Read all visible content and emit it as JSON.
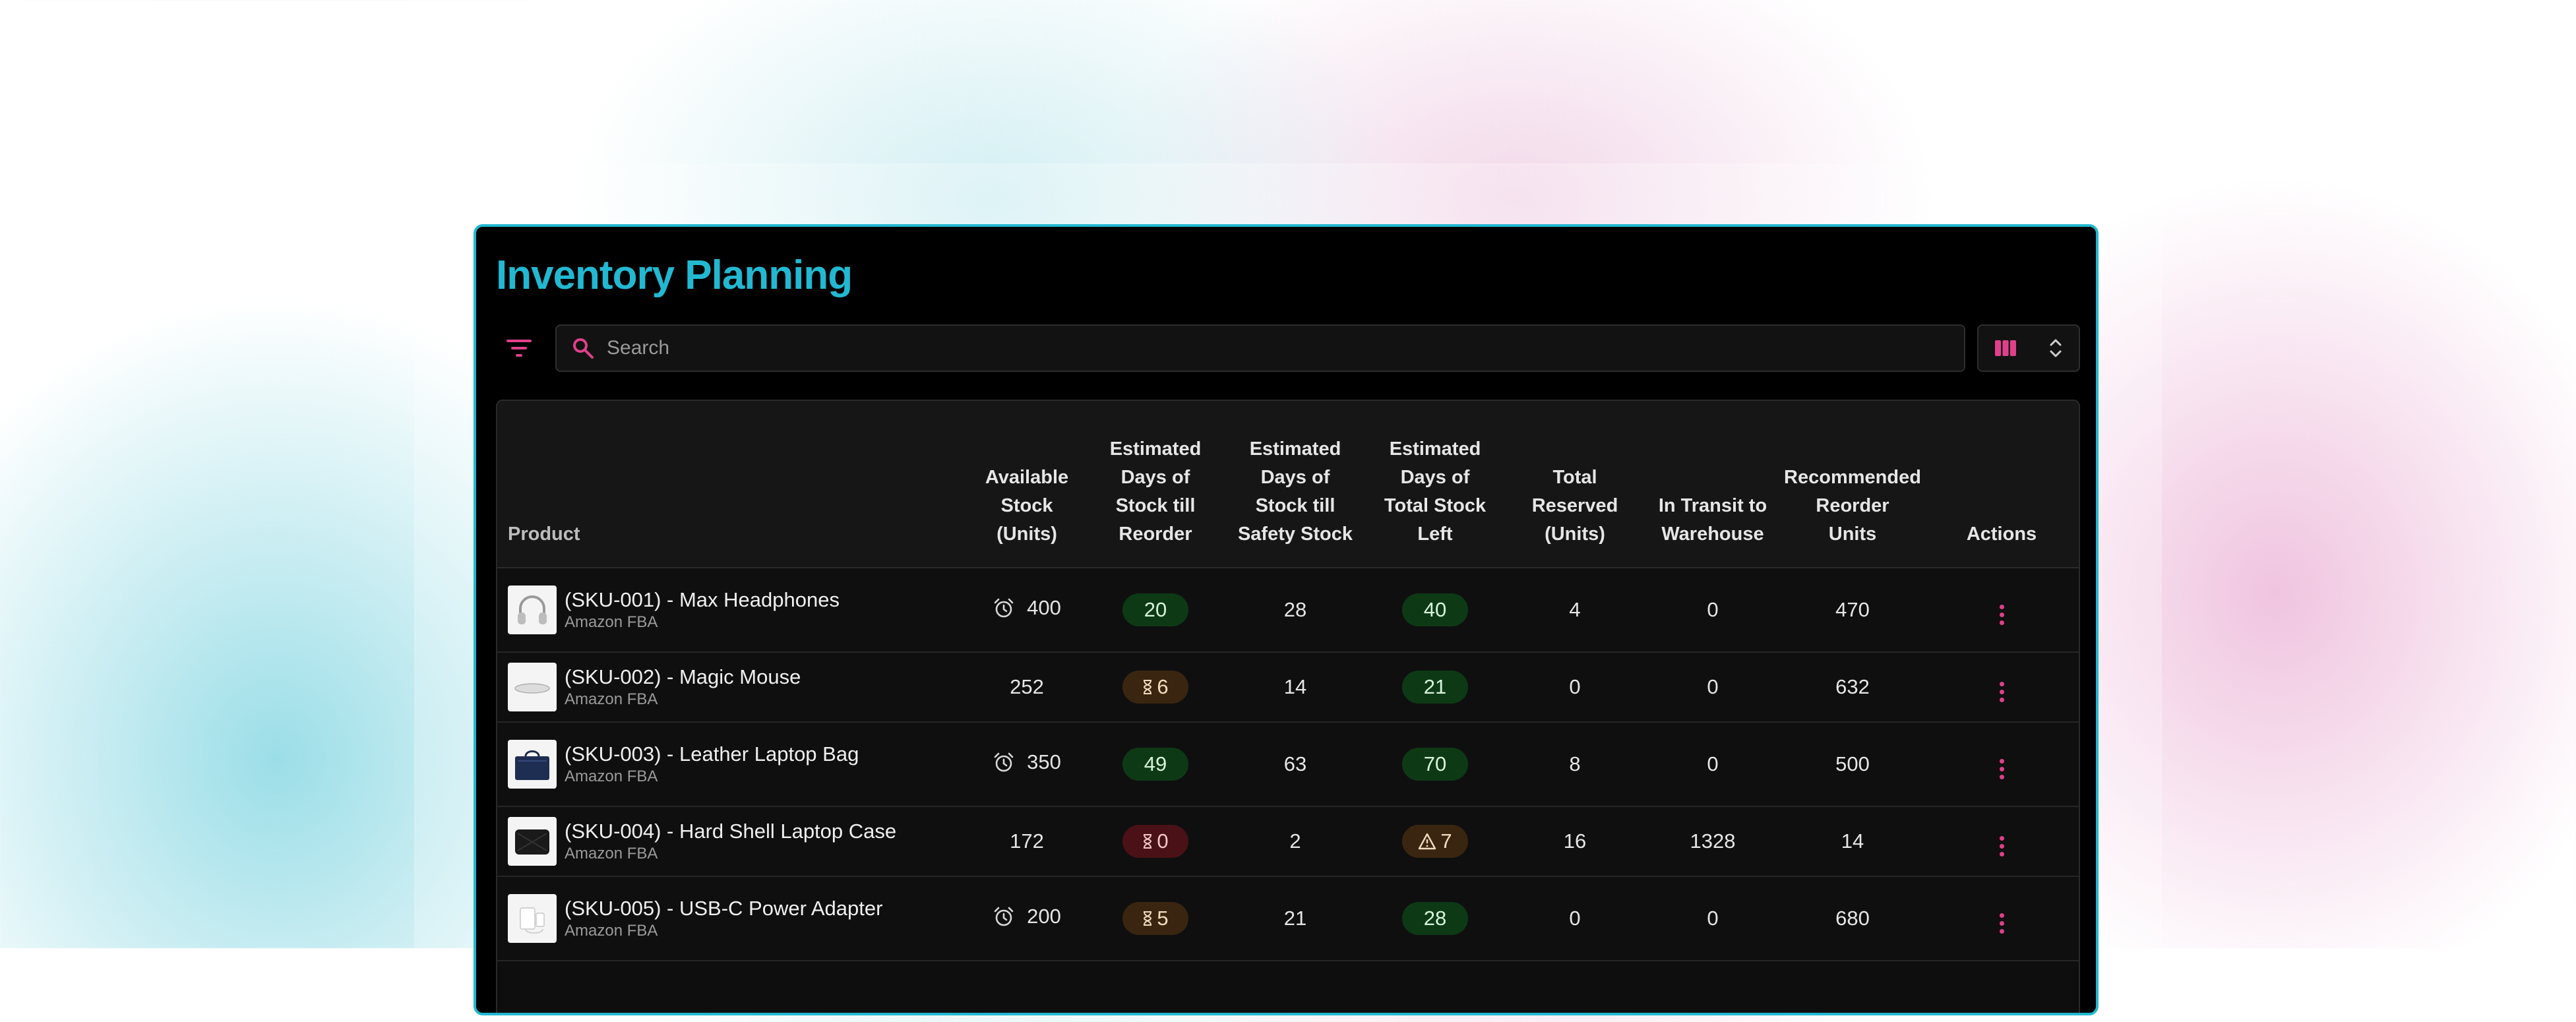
{
  "page": {
    "title": "Inventory Planning"
  },
  "toolbar": {
    "search_placeholder": "Search"
  },
  "colors": {
    "accent": "#22b8d1",
    "pink": "#e0408a",
    "green_pill": "#0d3a15",
    "amber_pill": "#3a2610",
    "red_pill": "#4a1216"
  },
  "table": {
    "headers": {
      "product": "Product",
      "available": [
        "Available",
        "Stock",
        "(Units)"
      ],
      "reorder": [
        "Estimated",
        "Days of",
        "Stock till",
        "Reorder"
      ],
      "safety": [
        "Estimated",
        "Days of",
        "Stock till",
        "Safety Stock"
      ],
      "total_left": [
        "Estimated",
        "Days of",
        "Total Stock",
        "Left"
      ],
      "reserved": [
        "Total",
        "Reserved",
        "(Units)"
      ],
      "transit": [
        "In Transit to",
        "Warehouse"
      ],
      "recommended": [
        "Recommended",
        "Reorder",
        "Units"
      ],
      "actions": "Actions"
    },
    "rows": [
      {
        "name": "(SKU-001) - Max Headphones",
        "channel": "Amazon FBA",
        "thumb_icon": "headphones-icon",
        "alarm": true,
        "available": "400",
        "reorder": "20",
        "reorder_status": "green",
        "safety": "28",
        "total_left": "40",
        "total_status": "green",
        "reserved": "4",
        "transit": "0",
        "recommended": "470"
      },
      {
        "name": "(SKU-002) - Magic Mouse",
        "channel": "Amazon FBA",
        "thumb_icon": "mouse-icon",
        "alarm": false,
        "available": "252",
        "reorder": "6",
        "reorder_status": "amber",
        "safety": "14",
        "total_left": "21",
        "total_status": "green",
        "reserved": "0",
        "transit": "0",
        "recommended": "632"
      },
      {
        "name": "(SKU-003) - Leather Laptop Bag",
        "channel": "Amazon FBA",
        "thumb_icon": "laptop-bag-icon",
        "alarm": true,
        "available": "350",
        "reorder": "49",
        "reorder_status": "green",
        "safety": "63",
        "total_left": "70",
        "total_status": "green",
        "reserved": "8",
        "transit": "0",
        "recommended": "500"
      },
      {
        "name": "(SKU-004) - Hard Shell Laptop Case",
        "channel": "Amazon FBA",
        "thumb_icon": "laptop-case-icon",
        "alarm": false,
        "available": "172",
        "reorder": "0",
        "reorder_status": "red",
        "safety": "2",
        "total_left": "7",
        "total_status": "amber",
        "reserved": "16",
        "transit": "1328",
        "recommended": "14"
      },
      {
        "name": "(SKU-005) - USB-C Power Adapter",
        "channel": "Amazon FBA",
        "thumb_icon": "power-adapter-icon",
        "alarm": true,
        "available": "200",
        "reorder": "5",
        "reorder_status": "amber",
        "safety": "21",
        "total_left": "28",
        "total_status": "green",
        "reserved": "0",
        "transit": "0",
        "recommended": "680"
      }
    ]
  }
}
